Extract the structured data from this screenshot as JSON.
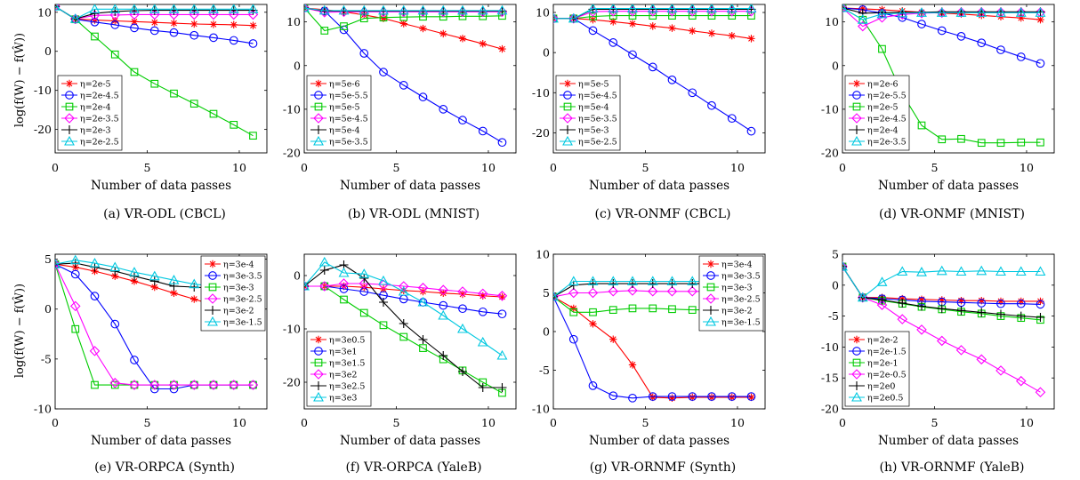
{
  "figure": {
    "ylabel": "log(f(W) − f(Ŵ))",
    "captions": [
      "(a) VR-ODL (CBCL)",
      "(b) VR-ODL (MNIST)",
      "(c) VR-ONMF (CBCL)",
      "(d) VR-ONMF (MNIST)",
      "(e) VR-ORPCA (Synth)",
      "(f) VR-ORPCA (YaleB)",
      "(g) VR-ORNMF (Synth)",
      "(h) VR-ORNMF (YaleB)"
    ]
  },
  "styles": {
    "series_colors": [
      "#ff0000",
      "#0000ff",
      "#00cc00",
      "#ff00ff",
      "#000000",
      "#00c8e0"
    ],
    "series_markers": [
      "star",
      "circle",
      "square",
      "diamond",
      "plus",
      "triangle"
    ]
  },
  "chart_data": [
    {
      "type": "line",
      "caption": "(a) VR-ODL (CBCL)",
      "xlabel": "Number of data passes",
      "ylabel": "log(f(W) − f(Ŵ))",
      "xlim": [
        0,
        11.5
      ],
      "ylim": [
        -26,
        12
      ],
      "xticks": [
        0,
        5,
        10
      ],
      "yticks": [
        -20,
        -10,
        0,
        10
      ],
      "legend": "bottom-left",
      "x": [
        0,
        1.1,
        2.15,
        3.25,
        4.3,
        5.4,
        6.45,
        7.55,
        8.6,
        9.7,
        10.75
      ],
      "series": [
        {
          "name": "η=2e-5",
          "values": [
            11.5,
            8.3,
            8.0,
            7.8,
            7.6,
            7.4,
            7.2,
            7.0,
            6.9,
            6.8,
            6.6
          ]
        },
        {
          "name": "η=2e-4.5",
          "values": [
            11.5,
            8.2,
            7.5,
            6.8,
            6.0,
            5.3,
            4.8,
            4.1,
            3.5,
            2.8,
            2.0
          ]
        },
        {
          "name": "η=2e-4",
          "values": [
            11.5,
            8.2,
            3.8,
            -0.8,
            -5.3,
            -8.3,
            -10.8,
            -13.4,
            -16.0,
            -18.8,
            -21.6
          ]
        },
        {
          "name": "η=2e-3.5",
          "values": [
            11.5,
            8.3,
            9.2,
            9.3,
            9.4,
            9.4,
            9.4,
            9.4,
            9.4,
            9.4,
            9.4
          ]
        },
        {
          "name": "η=2e-3",
          "values": [
            11.5,
            8.3,
            9.7,
            10.2,
            10.4,
            10.5,
            10.5,
            10.5,
            10.5,
            10.5,
            10.5
          ]
        },
        {
          "name": "η=2e-2.5",
          "values": [
            11.5,
            8.3,
            10.8,
            10.8,
            10.8,
            10.8,
            10.8,
            10.8,
            10.8,
            10.8,
            10.8
          ]
        }
      ]
    },
    {
      "type": "line",
      "caption": "(b) VR-ODL (MNIST)",
      "xlabel": "Number of data passes",
      "ylabel": "",
      "xlim": [
        0,
        11.5
      ],
      "ylim": [
        -20,
        14
      ],
      "xticks": [
        0,
        5,
        10
      ],
      "yticks": [
        -20,
        -10,
        0,
        10
      ],
      "legend": "bottom-left",
      "x": [
        0,
        1.1,
        2.15,
        3.25,
        4.3,
        5.4,
        6.45,
        7.55,
        8.6,
        9.7,
        10.75
      ],
      "series": [
        {
          "name": "η=5e-6",
          "values": [
            13.2,
            12.8,
            12.3,
            11.6,
            10.8,
            9.6,
            8.5,
            7.3,
            6.2,
            5.0,
            3.8
          ]
        },
        {
          "name": "η=5e-5.5",
          "values": [
            13.2,
            12.5,
            8.2,
            2.8,
            -1.5,
            -4.5,
            -7.2,
            -10.0,
            -12.5,
            -15.0,
            -17.6
          ]
        },
        {
          "name": "η=5e-5",
          "values": [
            13.2,
            8.0,
            9.0,
            10.8,
            11.0,
            11.1,
            11.2,
            11.2,
            11.3,
            11.3,
            11.4
          ]
        },
        {
          "name": "η=5e-4.5",
          "values": [
            13.2,
            12.2,
            12.3,
            12.3,
            12.3,
            12.3,
            12.3,
            12.3,
            12.3,
            12.3,
            12.3
          ]
        },
        {
          "name": "η=5e-4",
          "values": [
            13.2,
            12.5,
            12.5,
            12.5,
            12.5,
            12.5,
            12.5,
            12.5,
            12.5,
            12.5,
            12.5
          ]
        },
        {
          "name": "η=5e-3.5",
          "values": [
            13.2,
            12.6,
            12.6,
            12.6,
            12.6,
            12.6,
            12.6,
            12.6,
            12.6,
            12.6,
            12.6
          ]
        }
      ]
    },
    {
      "type": "line",
      "caption": "(c) VR-ONMF (CBCL)",
      "xlabel": "Number of data passes",
      "ylabel": "",
      "xlim": [
        0,
        11.5
      ],
      "ylim": [
        -25,
        12
      ],
      "xticks": [
        0,
        5,
        10
      ],
      "yticks": [
        -20,
        -10,
        0,
        10
      ],
      "legend": "bottom-left",
      "x": [
        0,
        1.1,
        2.15,
        3.25,
        4.3,
        5.4,
        6.45,
        7.55,
        8.6,
        9.7,
        10.75
      ],
      "series": [
        {
          "name": "η=5e-5",
          "values": [
            8.5,
            8.5,
            8.2,
            7.7,
            7.2,
            6.6,
            6.1,
            5.4,
            4.8,
            4.2,
            3.5
          ]
        },
        {
          "name": "η=5e-4.5",
          "values": [
            8.5,
            8.5,
            5.5,
            2.5,
            -0.5,
            -3.6,
            -6.8,
            -10.0,
            -13.2,
            -16.4,
            -19.6
          ]
        },
        {
          "name": "η=5e-4",
          "values": [
            8.5,
            8.5,
            9.0,
            9.2,
            9.2,
            9.2,
            9.2,
            9.2,
            9.2,
            9.2,
            9.2
          ]
        },
        {
          "name": "η=5e-3.5",
          "values": [
            8.5,
            8.5,
            10.2,
            10.3,
            10.3,
            10.3,
            10.3,
            10.3,
            10.3,
            10.3,
            10.3
          ]
        },
        {
          "name": "η=5e-3",
          "values": [
            8.5,
            8.5,
            10.8,
            10.8,
            10.8,
            10.8,
            10.8,
            10.8,
            10.8,
            10.8,
            10.8
          ]
        },
        {
          "name": "η=5e-2.5",
          "values": [
            8.5,
            8.5,
            11.0,
            11.0,
            11.0,
            11.0,
            11.0,
            11.0,
            11.0,
            11.0,
            11.0
          ]
        }
      ]
    },
    {
      "type": "line",
      "caption": "(d) VR-ONMF (MNIST)",
      "xlabel": "Number of data passes",
      "ylabel": "",
      "xlim": [
        0,
        11.5
      ],
      "ylim": [
        -20,
        14
      ],
      "xticks": [
        0,
        5,
        10
      ],
      "yticks": [
        -20,
        -10,
        0,
        10
      ],
      "legend": "bottom-left",
      "x": [
        0,
        1.1,
        2.15,
        3.25,
        4.3,
        5.4,
        6.45,
        7.55,
        8.6,
        9.7,
        10.75
      ],
      "series": [
        {
          "name": "η=2e-6",
          "values": [
            13.2,
            13.0,
            12.8,
            12.5,
            12.2,
            12.0,
            11.8,
            11.5,
            11.2,
            10.9,
            10.5
          ]
        },
        {
          "name": "η=2e-5.5",
          "values": [
            13.2,
            12.8,
            12.0,
            11.0,
            9.5,
            8.0,
            6.7,
            5.2,
            3.6,
            2.0,
            0.5
          ]
        },
        {
          "name": "η=2e-5",
          "values": [
            13.2,
            10.5,
            3.8,
            -6.5,
            -13.7,
            -16.9,
            -16.8,
            -17.7,
            -17.7,
            -17.6,
            -17.6
          ]
        },
        {
          "name": "η=2e-4.5",
          "values": [
            13.2,
            9.0,
            11.0,
            11.7,
            12.0,
            12.1,
            12.2,
            12.2,
            12.2,
            12.2,
            12.2
          ]
        },
        {
          "name": "η=2e-4",
          "values": [
            13.2,
            12.0,
            12.1,
            12.2,
            12.2,
            12.3,
            12.3,
            12.3,
            12.3,
            12.3,
            12.3
          ]
        },
        {
          "name": "η=2e-3.5",
          "values": [
            13.2,
            10.5,
            11.8,
            12.0,
            12.1,
            12.1,
            12.1,
            12.1,
            12.1,
            12.1,
            12.1
          ]
        }
      ]
    },
    {
      "type": "line",
      "caption": "(e) VR-ORPCA (Synth)",
      "xlabel": "Number of data passes",
      "ylabel": "log(f(W) − f(Ŵ))",
      "xlim": [
        0,
        11.5
      ],
      "ylim": [
        -10,
        5.5
      ],
      "xticks": [
        0,
        5,
        10
      ],
      "yticks": [
        -10,
        -5,
        0,
        5
      ],
      "legend": "top-right",
      "x": [
        0,
        1.1,
        2.15,
        3.25,
        4.3,
        5.4,
        6.45,
        7.55,
        8.6,
        9.7,
        10.75
      ],
      "series": [
        {
          "name": "η=3e-4",
          "values": [
            4.5,
            4.2,
            3.8,
            3.3,
            2.8,
            2.2,
            1.6,
            1.0,
            0.4,
            -0.2,
            -0.8
          ]
        },
        {
          "name": "η=3e-3.5",
          "values": [
            4.5,
            3.5,
            1.3,
            -1.5,
            -5.1,
            -8.0,
            -8.0,
            -7.6,
            -7.6,
            -7.6,
            -7.6
          ]
        },
        {
          "name": "η=3e-3",
          "values": [
            4.5,
            -2.0,
            -7.6,
            -7.6,
            -7.6,
            -7.6,
            -7.6,
            -7.6,
            -7.6,
            -7.6,
            -7.6
          ]
        },
        {
          "name": "η=3e-2.5",
          "values": [
            4.5,
            0.3,
            -4.2,
            -7.4,
            -7.6,
            -7.6,
            -7.6,
            -7.6,
            -7.6,
            -7.6,
            -7.6
          ]
        },
        {
          "name": "η=3e-2",
          "values": [
            4.5,
            4.6,
            4.2,
            3.8,
            3.3,
            2.8,
            2.3,
            2.2,
            2.1,
            2.1,
            2.1
          ]
        },
        {
          "name": "η=3e-1.5",
          "values": [
            4.5,
            4.9,
            4.6,
            4.2,
            3.7,
            3.3,
            2.9,
            2.5,
            2.3,
            2.1,
            2.0
          ]
        }
      ]
    },
    {
      "type": "line",
      "caption": "(f) VR-ORPCA (YaleB)",
      "xlabel": "Number of data passes",
      "ylabel": "",
      "xlim": [
        0,
        11.5
      ],
      "ylim": [
        -25,
        4
      ],
      "xticks": [
        0,
        5,
        10
      ],
      "yticks": [
        -20,
        -10,
        0
      ],
      "legend": "bottom-left",
      "x": [
        0,
        1.1,
        2.15,
        3.25,
        4.3,
        5.4,
        6.45,
        7.55,
        8.6,
        9.7,
        10.75
      ],
      "series": [
        {
          "name": "η=3e0.5",
          "values": [
            -2.0,
            -2.0,
            -2.0,
            -2.2,
            -2.5,
            -2.8,
            -3.0,
            -3.3,
            -3.5,
            -3.8,
            -4.0
          ]
        },
        {
          "name": "η=3e1",
          "values": [
            -2.0,
            -2.0,
            -2.5,
            -3.0,
            -3.7,
            -4.4,
            -5.0,
            -5.6,
            -6.2,
            -6.8,
            -7.2
          ]
        },
        {
          "name": "η=3e1.5",
          "values": [
            -2.0,
            -2.0,
            -4.5,
            -7.0,
            -9.3,
            -11.5,
            -13.6,
            -15.7,
            -17.8,
            -20.0,
            -22.0
          ]
        },
        {
          "name": "η=3e2",
          "values": [
            -2.0,
            -2.0,
            -1.5,
            -1.5,
            -1.7,
            -2.0,
            -2.3,
            -2.7,
            -3.0,
            -3.4,
            -3.8
          ]
        },
        {
          "name": "η=3e2.5",
          "values": [
            -2.0,
            1.0,
            2.0,
            -0.5,
            -5.0,
            -9.0,
            -12.0,
            -15.0,
            -18.0,
            -21.0,
            -21.0
          ]
        },
        {
          "name": "η=3e3",
          "values": [
            -2.0,
            2.5,
            0.5,
            0.3,
            -1.0,
            -3.0,
            -5.0,
            -7.5,
            -10.0,
            -12.5,
            -15.0
          ]
        }
      ]
    },
    {
      "type": "line",
      "caption": "(g) VR-ORNMF (Synth)",
      "xlabel": "Number of data passes",
      "ylabel": "",
      "xlim": [
        0,
        11.5
      ],
      "ylim": [
        -10,
        10
      ],
      "xticks": [
        0,
        5,
        10
      ],
      "yticks": [
        -10,
        -5,
        0,
        5,
        10
      ],
      "legend": "top-right",
      "x": [
        0,
        1.1,
        2.15,
        3.25,
        4.3,
        5.4,
        6.45,
        7.55,
        8.6,
        9.7,
        10.75
      ],
      "series": [
        {
          "name": "η=3e-4",
          "values": [
            4.5,
            3.0,
            1.0,
            -1.0,
            -4.3,
            -8.5,
            -8.6,
            -8.5,
            -8.5,
            -8.5,
            -8.5
          ]
        },
        {
          "name": "η=3e-3.5",
          "values": [
            4.5,
            -1.0,
            -7.0,
            -8.3,
            -8.6,
            -8.4,
            -8.4,
            -8.4,
            -8.4,
            -8.4,
            -8.4
          ]
        },
        {
          "name": "η=3e-3",
          "values": [
            4.5,
            2.5,
            2.5,
            2.8,
            3.0,
            3.0,
            2.9,
            2.8,
            2.8,
            2.8,
            2.8
          ]
        },
        {
          "name": "η=3e-2.5",
          "values": [
            4.5,
            5.0,
            5.0,
            5.2,
            5.3,
            5.2,
            5.2,
            5.2,
            5.2,
            5.2,
            5.2
          ]
        },
        {
          "name": "η=3e-2",
          "values": [
            4.5,
            6.0,
            6.2,
            6.2,
            6.2,
            6.2,
            6.2,
            6.2,
            6.2,
            6.2,
            6.2
          ]
        },
        {
          "name": "η=3e-1.5",
          "values": [
            4.5,
            6.5,
            6.5,
            6.5,
            6.5,
            6.5,
            6.5,
            6.5,
            6.5,
            6.5,
            6.5
          ]
        }
      ]
    },
    {
      "type": "line",
      "caption": "(h) VR-ORNMF (YaleB)",
      "xlabel": "Number of data passes",
      "ylabel": "",
      "xlim": [
        0,
        11.5
      ],
      "ylim": [
        -20,
        5
      ],
      "xticks": [
        0,
        5,
        10
      ],
      "yticks": [
        -20,
        -15,
        -10,
        -5,
        0,
        5
      ],
      "legend": "bottom-left",
      "x": [
        0,
        1.1,
        2.15,
        3.25,
        4.3,
        5.4,
        6.45,
        7.55,
        8.6,
        9.7,
        10.75
      ],
      "series": [
        {
          "name": "η=2e-2",
          "values": [
            3.0,
            -2.0,
            -2.0,
            -2.2,
            -2.3,
            -2.4,
            -2.5,
            -2.5,
            -2.6,
            -2.6,
            -2.6
          ]
        },
        {
          "name": "η=2e-1.5",
          "values": [
            3.0,
            -2.0,
            -2.2,
            -2.4,
            -2.6,
            -2.7,
            -2.8,
            -2.9,
            -3.0,
            -3.0,
            -3.1
          ]
        },
        {
          "name": "η=2e-1",
          "values": [
            3.0,
            -2.0,
            -2.5,
            -3.0,
            -3.5,
            -3.9,
            -4.3,
            -4.6,
            -5.0,
            -5.3,
            -5.6
          ]
        },
        {
          "name": "η=2e-0.5",
          "values": [
            3.0,
            -2.0,
            -3.2,
            -5.5,
            -7.2,
            -9.0,
            -10.5,
            -12.0,
            -13.8,
            -15.5,
            -17.3
          ]
        },
        {
          "name": "η=2e0",
          "values": [
            3.0,
            -2.0,
            -2.4,
            -2.9,
            -3.4,
            -3.8,
            -4.1,
            -4.4,
            -4.7,
            -5.0,
            -5.2
          ]
        },
        {
          "name": "η=2e0.5",
          "values": [
            3.0,
            -2.0,
            0.5,
            2.2,
            2.1,
            2.3,
            2.2,
            2.3,
            2.2,
            2.2,
            2.2
          ]
        }
      ]
    }
  ]
}
